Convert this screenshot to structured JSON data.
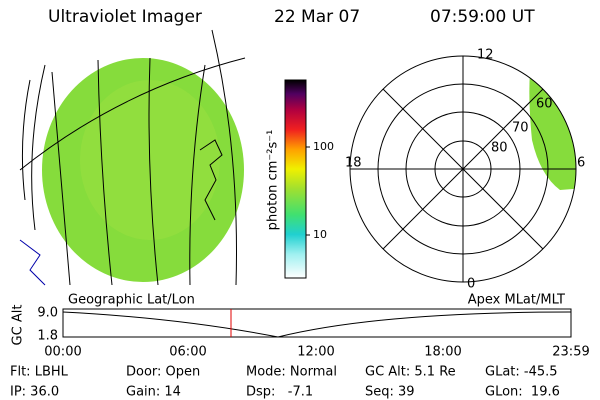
{
  "header": {
    "title": "Ultraviolet Imager",
    "date": "22 Mar 07",
    "time": "07:59:00 UT"
  },
  "colorbar": {
    "label": "photon cm⁻²s⁻¹",
    "ticks": [
      "100",
      "10"
    ]
  },
  "polar": {
    "labels": {
      "top": "12",
      "left": "18",
      "right": "6",
      "bottom": "0",
      "ring60": "60",
      "ring70": "70",
      "ring80": "80"
    }
  },
  "timeline": {
    "left_title": "Geographic Lat/Lon",
    "right_title": "Apex MLat/MLT",
    "y_axis_label": "GC Alt",
    "yticks": [
      "9.0",
      "1.8"
    ],
    "xticks": [
      "00:00",
      "06:00",
      "12:00",
      "18:00",
      "23:59"
    ]
  },
  "info": {
    "rows": [
      [
        "Flt: LBHL",
        "Door: Open",
        "Mode: Normal",
        "GC Alt: 5.1 Re",
        "GLat: -45.5"
      ],
      [
        "IP: 36.0",
        "Gain: 14",
        "Dsp:   -7.1",
        "Seq: 39",
        "GLon:  19.6"
      ]
    ]
  }
}
